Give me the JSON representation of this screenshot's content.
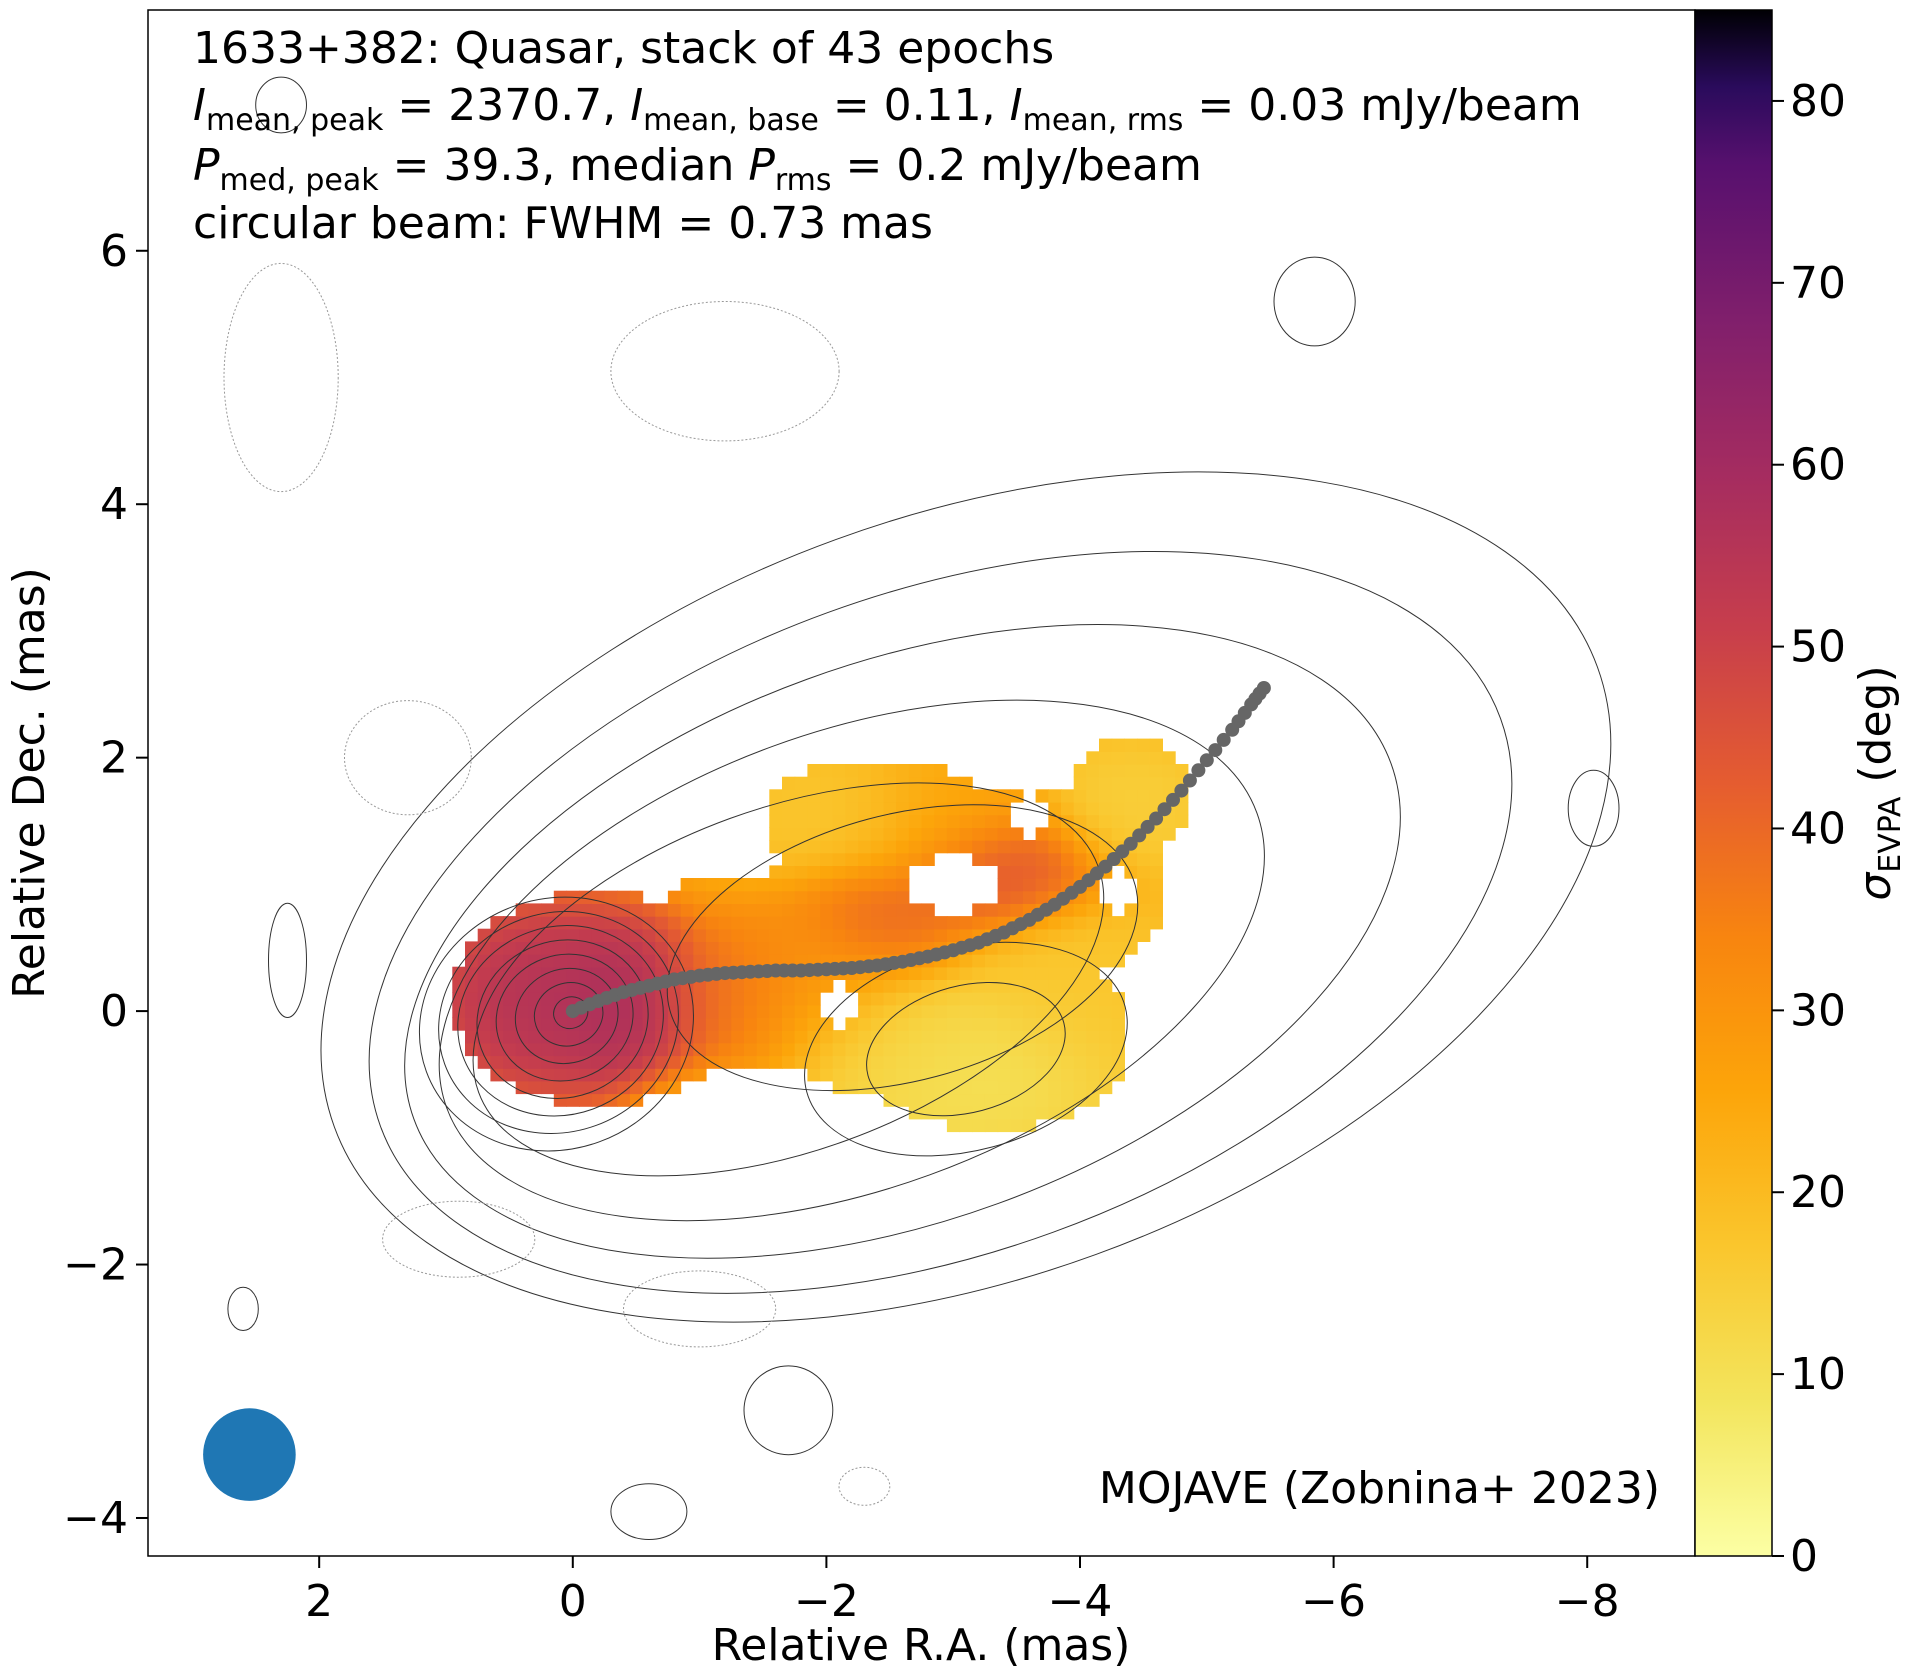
{
  "chart_data": {
    "type": "heatmap",
    "title_lines": [
      [
        "1633+382: Quasar, stack of 43 epochs"
      ],
      [
        {
          "t": "I",
          "i": true
        },
        {
          "t": "mean, peak",
          "sub": true
        },
        {
          "t": " = 2370.7, "
        },
        {
          "t": "I",
          "i": true
        },
        {
          "t": "mean, base",
          "sub": true
        },
        {
          "t": " = 0.11, "
        },
        {
          "t": "I",
          "i": true
        },
        {
          "t": "mean, rms",
          "sub": true
        },
        {
          "t": " = 0.03 mJy/beam"
        }
      ],
      [
        {
          "t": "P",
          "i": true
        },
        {
          "t": "med, peak",
          "sub": true
        },
        {
          "t": " = 39.3, median "
        },
        {
          "t": "P",
          "i": true
        },
        {
          "t": "rms",
          "sub": true
        },
        {
          "t": " = 0.2 mJy/beam"
        }
      ],
      [
        "circular beam: FWHM = 0.73 mas"
      ]
    ],
    "credit": "MOJAVE (Zobnina+ 2023)",
    "xlabel": "Relative R.A. (mas)",
    "ylabel": "Relative Dec. (mas)",
    "xlim": [
      3.35,
      -8.85
    ],
    "ylim": [
      -4.3,
      7.9
    ],
    "x_ticks": [
      2,
      0,
      -2,
      -4,
      -6,
      -8
    ],
    "x_tick_labels": [
      "2",
      "0",
      "−2",
      "−4",
      "−6",
      "−8"
    ],
    "y_ticks": [
      -4,
      -2,
      0,
      2,
      4,
      6
    ],
    "y_tick_labels": [
      "−4",
      "−2",
      "0",
      "2",
      "4",
      "6"
    ],
    "colorbar": {
      "label_main": "σ",
      "label_sub": "EVPA",
      "label_rest": " (deg)",
      "range": [
        0,
        85
      ],
      "ticks": [
        0,
        10,
        20,
        30,
        40,
        50,
        60,
        70,
        80
      ],
      "colormap": "inferno_r"
    },
    "beam": {
      "ra": 2.55,
      "dec": -3.5,
      "fwhm_mas": 0.73,
      "color": "#1f77b4"
    },
    "ridgeline": {
      "color": "#666666",
      "points": [
        [
          0,
          0
        ],
        [
          -0.2,
          0.08
        ],
        [
          -0.4,
          0.15
        ],
        [
          -0.6,
          0.2
        ],
        [
          -0.8,
          0.25
        ],
        [
          -1.0,
          0.28
        ],
        [
          -1.2,
          0.3
        ],
        [
          -1.4,
          0.31
        ],
        [
          -1.6,
          0.32
        ],
        [
          -1.8,
          0.32
        ],
        [
          -2.0,
          0.33
        ],
        [
          -2.2,
          0.34
        ],
        [
          -2.4,
          0.36
        ],
        [
          -2.6,
          0.39
        ],
        [
          -2.8,
          0.43
        ],
        [
          -3.0,
          0.48
        ],
        [
          -3.2,
          0.54
        ],
        [
          -3.4,
          0.62
        ],
        [
          -3.6,
          0.72
        ],
        [
          -3.8,
          0.84
        ],
        [
          -4.0,
          0.98
        ],
        [
          -4.2,
          1.14
        ],
        [
          -4.4,
          1.32
        ],
        [
          -4.6,
          1.52
        ],
        [
          -4.8,
          1.74
        ],
        [
          -5.0,
          1.98
        ],
        [
          -5.2,
          2.22
        ],
        [
          -5.35,
          2.42
        ],
        [
          -5.45,
          2.55
        ]
      ]
    },
    "evpa_regions": [
      {
        "ra": 0.25,
        "dec": 0.1,
        "sra": 0.7,
        "sdec": 0.6,
        "v": 60
      },
      {
        "ra": -0.45,
        "dec": 0.05,
        "sra": 0.45,
        "sdec": 0.5,
        "v": 62
      },
      {
        "ra": -1.3,
        "dec": 0.1,
        "sra": 0.6,
        "sdec": 0.5,
        "v": 40
      },
      {
        "ra": -1.9,
        "dec": 0.3,
        "sra": 0.5,
        "sdec": 0.5,
        "v": 30
      },
      {
        "ra": -2.4,
        "dec": 0.7,
        "sra": 0.5,
        "sdec": 0.4,
        "v": 42
      },
      {
        "ra": -3.4,
        "dec": 1.1,
        "sra": 0.6,
        "sdec": 0.35,
        "v": 48
      },
      {
        "ra": -2.9,
        "dec": 1.5,
        "sra": 0.6,
        "sdec": 0.4,
        "v": 26
      },
      {
        "ra": -2.1,
        "dec": 1.5,
        "sra": 0.6,
        "sdec": 0.4,
        "v": 16
      },
      {
        "ra": -3.1,
        "dec": -0.5,
        "sra": 0.9,
        "sdec": 0.5,
        "v": 8
      },
      {
        "ra": -2.4,
        "dec": -0.2,
        "sra": 0.7,
        "sdec": 0.5,
        "v": 14
      },
      {
        "ra": -4.0,
        "dec": 0.2,
        "sra": 0.6,
        "sdec": 0.6,
        "v": 16
      },
      {
        "ra": -4.4,
        "dec": 1.6,
        "sra": 0.5,
        "sdec": 0.4,
        "v": 14
      },
      {
        "ra": -1.1,
        "dec": -0.8,
        "sra": 0.5,
        "sdec": 0.3,
        "v": 22
      }
    ],
    "evpa_base": 22,
    "evpa_mask": [
      {
        "ra": -0.2,
        "dec": 0.1,
        "sra": 1.15,
        "sdec": 0.85
      },
      {
        "ra": -1.3,
        "dec": 0.3,
        "sra": 0.9,
        "sdec": 0.8
      },
      {
        "ra": -2.5,
        "dec": 0.4,
        "sra": 1.2,
        "sdec": 1.1
      },
      {
        "ra": -3.3,
        "dec": -0.2,
        "sra": 1.1,
        "sdec": 0.75
      },
      {
        "ra": -3.6,
        "dec": 1.0,
        "sra": 1.1,
        "sdec": 0.8
      },
      {
        "ra": -2.4,
        "dec": 1.5,
        "sra": 0.9,
        "sdec": 0.5
      },
      {
        "ra": -4.4,
        "dec": 1.7,
        "sra": 0.5,
        "sdec": 0.5
      }
    ],
    "evpa_holes": [
      {
        "ra": -3.0,
        "dec": 1.0,
        "sra": 0.4,
        "sdec": 0.3
      },
      {
        "ra": -2.1,
        "dec": 0.05,
        "sra": 0.15,
        "sdec": 0.25
      },
      {
        "ra": -3.6,
        "dec": 1.55,
        "sra": 0.25,
        "sdec": 0.2
      },
      {
        "ra": -4.3,
        "dec": 0.95,
        "sra": 0.2,
        "sdec": 0.2
      }
    ]
  }
}
